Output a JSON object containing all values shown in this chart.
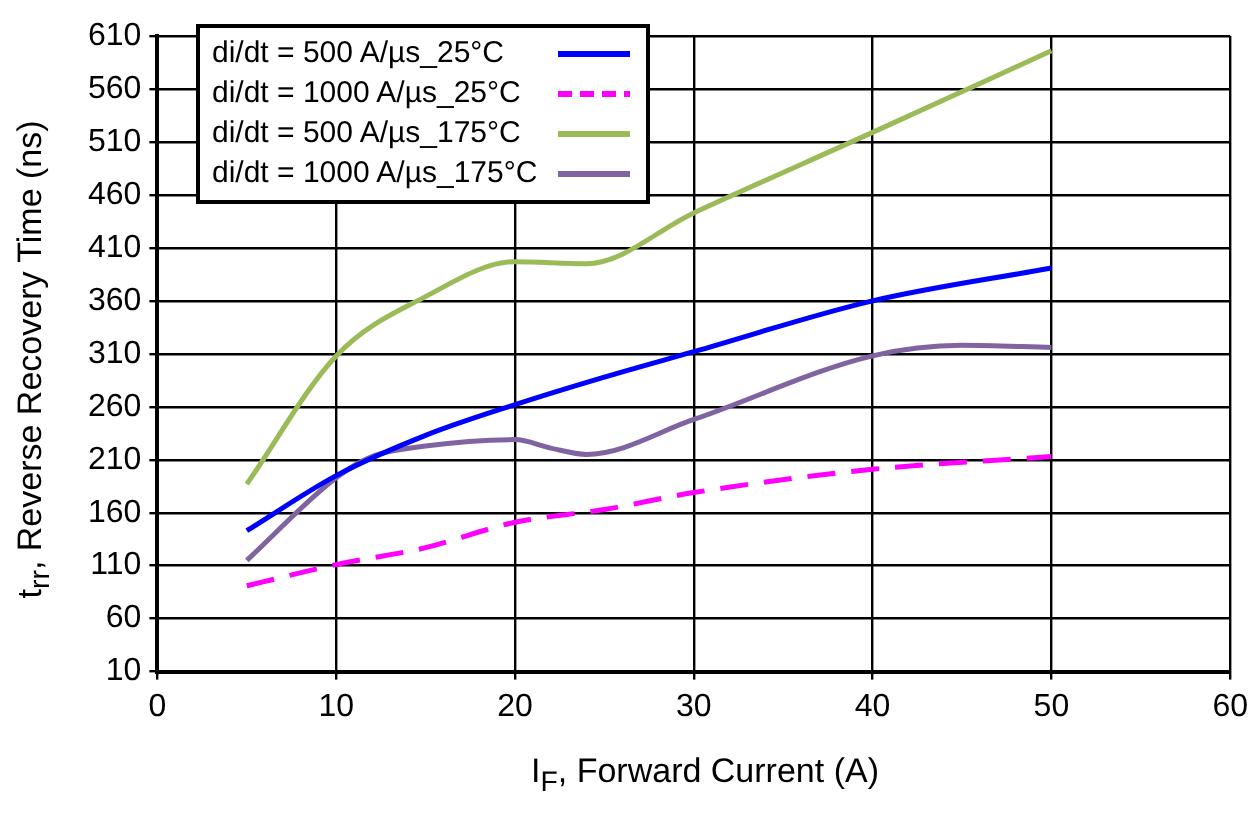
{
  "chart_data": {
    "type": "line",
    "xlabel": "I$_{F}$, Forward Current (A)",
    "ylabel": "t$_{rr}$, Reverse Recovery Time (ns)",
    "xlim": [
      0,
      60
    ],
    "xticks": [
      0,
      10,
      20,
      30,
      40,
      50,
      60
    ],
    "ylim": [
      10,
      610
    ],
    "yticks": [
      10,
      60,
      110,
      160,
      210,
      260,
      310,
      360,
      410,
      460,
      510,
      560,
      610
    ],
    "grid": true,
    "legend": "top left",
    "marker": "none",
    "series": [
      {
        "name": "di/dt = 500 A/µs_25°C",
        "color": "#0000ff",
        "line_style": "solid",
        "x": [
          5,
          10,
          15,
          20,
          25,
          30,
          40,
          50
        ],
        "values": [
          143,
          195,
          233,
          262,
          288,
          312,
          360,
          391
        ]
      },
      {
        "name": "di/dt = 1000 A/µs_25°C",
        "color": "#ff00ff",
        "line_style": "dashed",
        "x": [
          5,
          10,
          15,
          20,
          25,
          30,
          40,
          50
        ],
        "values": [
          91,
          111,
          127,
          151,
          163,
          179,
          201,
          213
        ]
      },
      {
        "name": "di/dt = 500 A/µs_175°C",
        "color": "#9bbb59",
        "line_style": "solid",
        "x": [
          5,
          10,
          15,
          20,
          24,
          30,
          40,
          50
        ],
        "values": [
          187,
          308,
          364,
          397,
          395,
          443,
          519,
          596
        ]
      },
      {
        "name": "di/dt = 1000 A/µs_175°C",
        "color": "#8064a2",
        "line_style": "solid",
        "x": [
          5,
          10,
          12,
          15,
          20,
          22,
          24,
          30,
          40,
          45,
          50
        ],
        "values": [
          115,
          193,
          213,
          223,
          229,
          221,
          215,
          248,
          308,
          318,
          316
        ]
      }
    ]
  }
}
